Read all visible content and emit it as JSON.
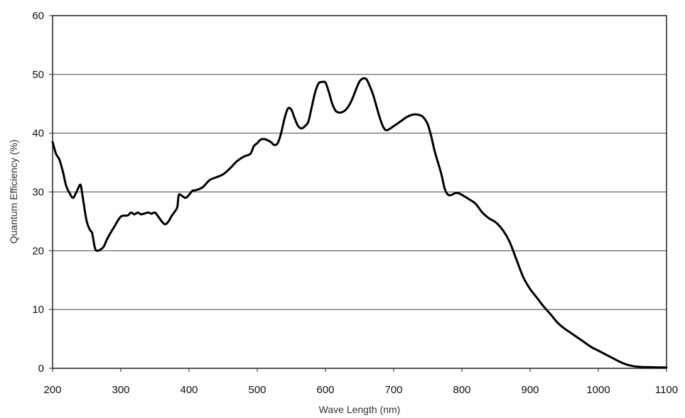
{
  "chart_data": {
    "type": "line",
    "title": "",
    "xlabel": "Wave Length (nm)",
    "ylabel": "Quantum Efficiency (%)",
    "xlim": [
      200,
      1100
    ],
    "ylim": [
      0,
      60
    ],
    "x_ticks": [
      "200",
      "300",
      "400",
      "500",
      "600",
      "700",
      "800",
      "900",
      "1000",
      "1100"
    ],
    "y_ticks": [
      "0",
      "10",
      "20",
      "30",
      "40",
      "50",
      "60"
    ],
    "grid": "horizontal",
    "legend": "none",
    "line_color": "#000000",
    "series": [
      {
        "x": [
          200,
          205,
          210,
          215,
          220,
          225,
          230,
          235,
          240,
          242,
          245,
          250,
          255,
          258,
          262,
          265,
          270,
          275,
          280,
          290,
          300,
          310,
          315,
          320,
          325,
          330,
          340,
          345,
          350,
          355,
          360,
          365,
          370,
          375,
          380,
          383,
          385,
          390,
          395,
          400,
          405,
          410,
          420,
          430,
          440,
          450,
          460,
          470,
          480,
          490,
          495,
          500,
          505,
          510,
          515,
          520,
          525,
          530,
          535,
          540,
          545,
          550,
          555,
          560,
          565,
          570,
          575,
          580,
          585,
          590,
          595,
          600,
          605,
          610,
          615,
          620,
          625,
          630,
          635,
          640,
          645,
          650,
          655,
          660,
          665,
          670,
          675,
          680,
          685,
          690,
          700,
          710,
          720,
          730,
          740,
          745,
          750,
          755,
          760,
          765,
          770,
          775,
          780,
          785,
          790,
          795,
          800,
          810,
          820,
          830,
          840,
          850,
          860,
          870,
          880,
          890,
          900,
          910,
          920,
          930,
          940,
          950,
          960,
          970,
          980,
          990,
          1000,
          1010,
          1020,
          1030,
          1040,
          1050,
          1060,
          1070,
          1080,
          1090,
          1100
        ],
        "y": [
          38.5,
          36.5,
          35.5,
          33.5,
          31.0,
          29.8,
          29.0,
          30.0,
          31.2,
          30.8,
          28.5,
          25.0,
          23.5,
          23.0,
          20.5,
          20.0,
          20.2,
          20.7,
          22.0,
          24.0,
          25.8,
          26.0,
          26.5,
          26.2,
          26.5,
          26.2,
          26.5,
          26.3,
          26.5,
          25.8,
          25.0,
          24.5,
          25.0,
          26.0,
          26.8,
          27.5,
          29.5,
          29.3,
          29.0,
          29.5,
          30.2,
          30.3,
          30.8,
          32.0,
          32.5,
          33.0,
          34.0,
          35.2,
          36.0,
          36.5,
          37.8,
          38.3,
          38.9,
          39.0,
          38.8,
          38.5,
          38.0,
          38.3,
          40.0,
          42.5,
          44.2,
          44.0,
          42.5,
          41.2,
          40.8,
          41.2,
          42.0,
          44.5,
          47.0,
          48.5,
          48.7,
          48.6,
          47.0,
          45.0,
          43.8,
          43.5,
          43.6,
          44.0,
          44.8,
          46.0,
          47.5,
          48.8,
          49.3,
          49.2,
          48.0,
          46.5,
          44.5,
          42.5,
          41.0,
          40.5,
          41.2,
          42.0,
          42.8,
          43.2,
          43.0,
          42.5,
          41.5,
          39.5,
          37.0,
          35.0,
          33.0,
          30.5,
          29.5,
          29.5,
          29.8,
          29.8,
          29.5,
          28.8,
          28.0,
          26.5,
          25.5,
          24.8,
          23.5,
          21.5,
          18.5,
          15.5,
          13.5,
          12.0,
          10.5,
          9.2,
          7.8,
          6.8,
          6.0,
          5.2,
          4.4,
          3.6,
          3.0,
          2.4,
          1.8,
          1.2,
          0.7,
          0.4,
          0.25,
          0.2,
          0.18,
          0.15,
          0.15
        ]
      }
    ]
  }
}
